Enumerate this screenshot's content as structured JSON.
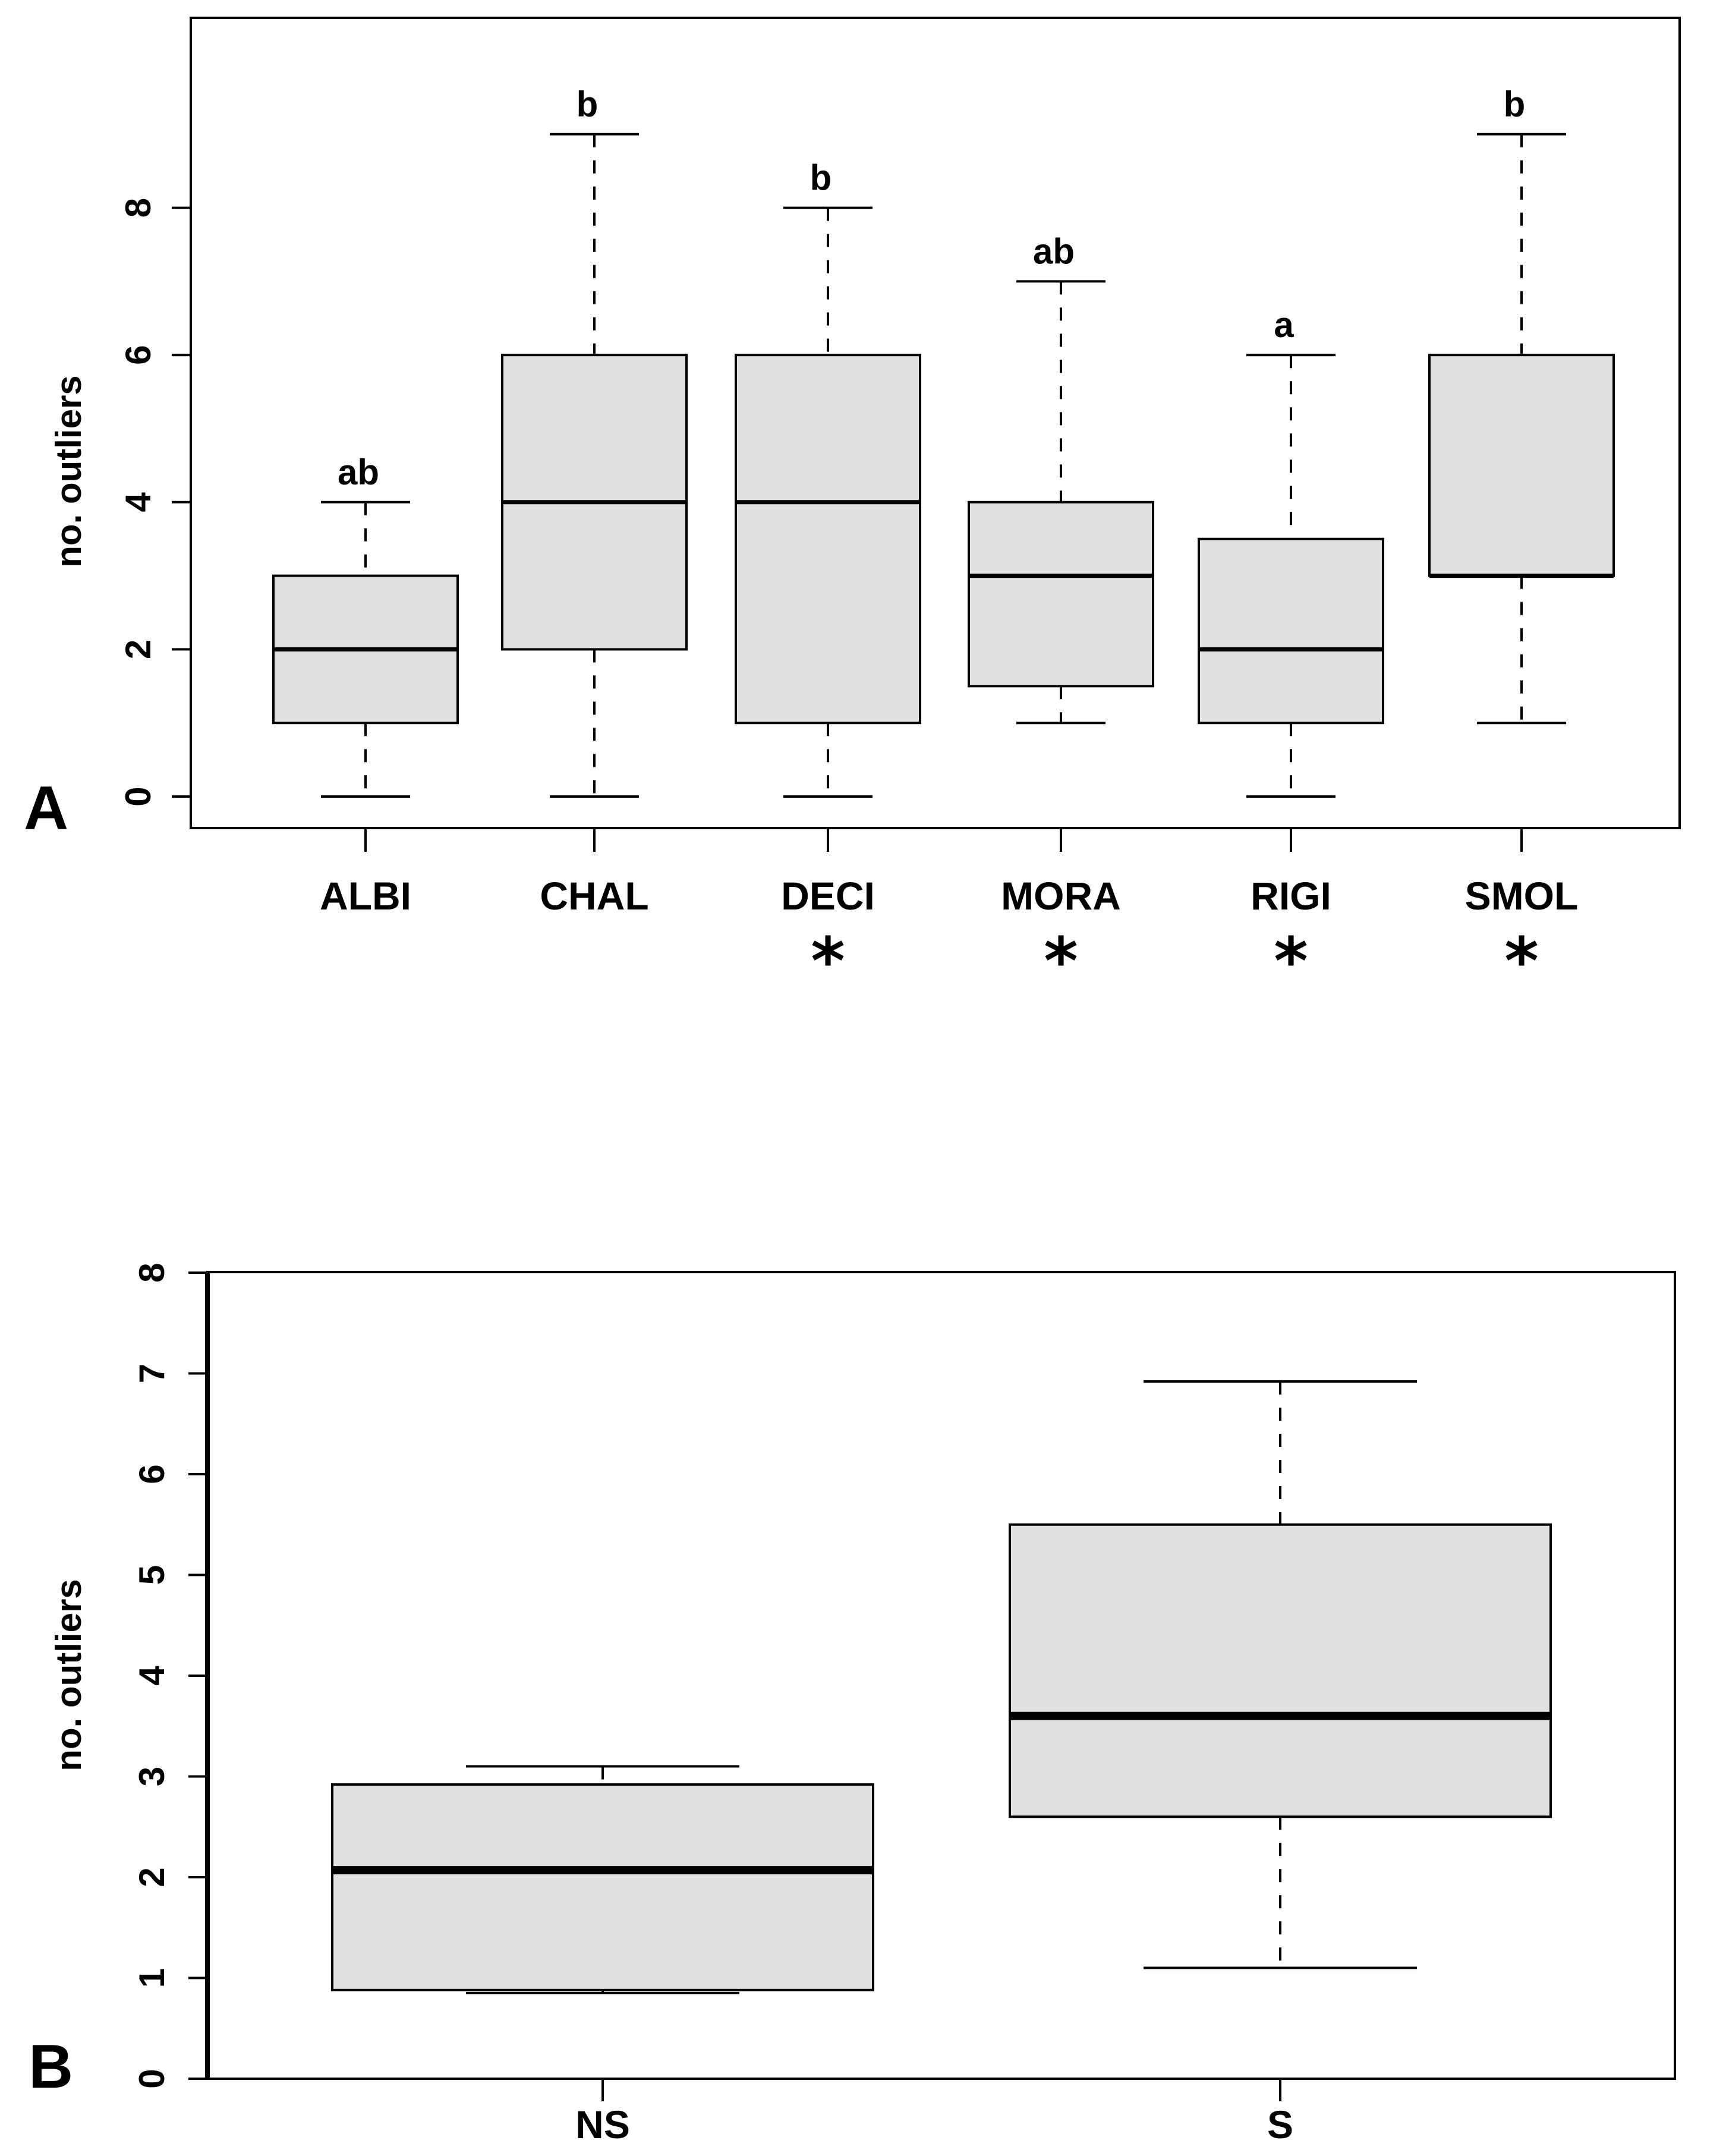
{
  "chart_data": [
    {
      "type": "boxplot",
      "panel_label": "A",
      "ylabel": "no. outliers",
      "xlabel": "",
      "ylim": [
        -0.4,
        10.6
      ],
      "yticks": [
        0,
        2,
        4,
        6,
        8
      ],
      "ytick_labels": [
        "0",
        "2",
        "4",
        "6",
        "8"
      ],
      "categories": [
        "ALBI",
        "CHAL",
        "DECI",
        "MORA",
        "RIGI",
        "SMOL"
      ],
      "boxes": [
        {
          "whisker_low": 0,
          "q1": 1,
          "median": 2,
          "q3": 3,
          "whisker_high": 4
        },
        {
          "whisker_low": 0,
          "q1": 2,
          "median": 4,
          "q3": 6,
          "whisker_high": 9
        },
        {
          "whisker_low": 0,
          "q1": 1,
          "median": 4,
          "q3": 6,
          "whisker_high": 8
        },
        {
          "whisker_low": 1,
          "q1": 1.5,
          "median": 3,
          "q3": 4,
          "whisker_high": 7
        },
        {
          "whisker_low": 0,
          "q1": 1,
          "median": 2,
          "q3": 3.5,
          "whisker_high": 6
        },
        {
          "whisker_low": 1,
          "q1": 3,
          "median": 3,
          "q3": 6,
          "whisker_high": 9
        }
      ],
      "group_letters": [
        "ab",
        "b",
        "b",
        "ab",
        "a",
        "b"
      ],
      "significance_marks": [
        "",
        "",
        "*",
        "*",
        "*",
        "*"
      ],
      "box_fill": "#e0e0e0",
      "grid": false
    },
    {
      "type": "boxplot",
      "panel_label": "B",
      "ylabel": "no. outliers",
      "xlabel": "",
      "ylim": [
        0,
        8
      ],
      "yticks": [
        0,
        1,
        2,
        3,
        4,
        5,
        6,
        7,
        8
      ],
      "ytick_labels": [
        "0",
        "1",
        "2",
        "3",
        "4",
        "5",
        "6",
        "7",
        "8"
      ],
      "categories": [
        "NS",
        "S"
      ],
      "boxes": [
        {
          "whisker_low": 0.85,
          "q1": 0.88,
          "median": 2.07,
          "q3": 2.92,
          "whisker_high": 3.1
        },
        {
          "whisker_low": 1.1,
          "q1": 2.6,
          "median": 3.6,
          "q3": 5.5,
          "whisker_high": 6.92
        }
      ],
      "box_fill": "#e0e0e0",
      "grid": false
    }
  ]
}
